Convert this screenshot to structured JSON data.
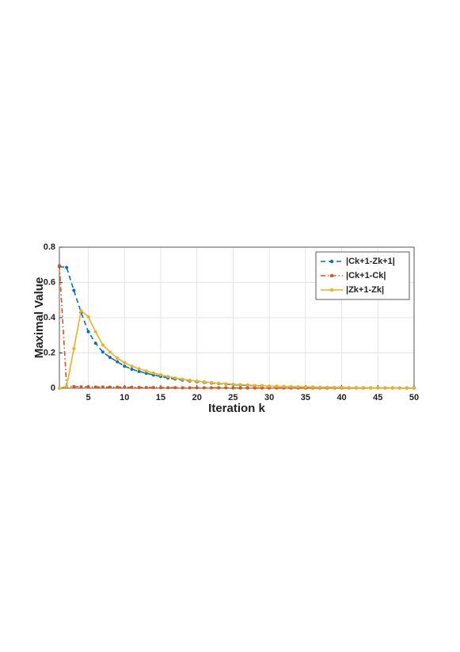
{
  "chart_data": {
    "type": "line",
    "x_label": "Iteration k",
    "y_label": "Maximal Value",
    "x": [
      1,
      2,
      3,
      4,
      5,
      6,
      7,
      8,
      9,
      10,
      11,
      12,
      13,
      14,
      15,
      16,
      17,
      18,
      19,
      20,
      21,
      22,
      23,
      24,
      25,
      26,
      27,
      28,
      29,
      30,
      31,
      32,
      33,
      34,
      35,
      36,
      37,
      38,
      39,
      40,
      41,
      42,
      43,
      44,
      45,
      46,
      47,
      48,
      49,
      50
    ],
    "xlim": [
      1,
      50
    ],
    "xticks": [
      5,
      10,
      15,
      20,
      25,
      30,
      35,
      40,
      45,
      50
    ],
    "ylim": [
      0,
      0.8
    ],
    "yticks": [
      0,
      0.2,
      0.4,
      0.6,
      0.8
    ],
    "grid": true,
    "legend": "northeast",
    "series": [
      {
        "name": "|Ck+1-Zk+1|",
        "color": "#0072BD",
        "line_style": "dashed",
        "values": [
          0.69,
          0.685,
          0.555,
          0.43,
          0.32,
          0.255,
          0.205,
          0.175,
          0.15,
          0.125,
          0.108,
          0.095,
          0.085,
          0.075,
          0.067,
          0.058,
          0.052,
          0.046,
          0.041,
          0.037,
          0.033,
          0.029,
          0.026,
          0.023,
          0.02,
          0.018,
          0.016,
          0.014,
          0.013,
          0.011,
          0.01,
          0.009,
          0.008,
          0.007,
          0.006,
          0.006,
          0.005,
          0.004,
          0.004,
          0.004,
          0.003,
          0.003,
          0.003,
          0.002,
          0.002,
          0.002,
          0.002,
          0.001,
          0.001,
          0.001
        ]
      },
      {
        "name": "|Ck+1-Ck|",
        "color": "#D95319",
        "line_style": "dashdot",
        "values": [
          0.695,
          0.01,
          0.009,
          0.008,
          0.008,
          0.007,
          0.007,
          0.006,
          0.006,
          0.005,
          0.005,
          0.004,
          0.004,
          0.004,
          0.003,
          0.003,
          0.003,
          0.002,
          0.002,
          0.002,
          0.002,
          0.002,
          0.002,
          0.002,
          0.001,
          0.001,
          0.001,
          0.001,
          0.001,
          0.001,
          0.001,
          0.001,
          0.001,
          0.001,
          0.001,
          0.001,
          0.001,
          0.001,
          0.001,
          0.001,
          0.001,
          0.001,
          0.001,
          0.001,
          0.001,
          0.001,
          0.001,
          0.001,
          0.001,
          0.001
        ]
      },
      {
        "name": "|Zk+1-Zk|",
        "color": "#EDB120",
        "line_style": "solid",
        "values": [
          0,
          0.01,
          0.225,
          0.44,
          0.405,
          0.32,
          0.245,
          0.205,
          0.17,
          0.145,
          0.125,
          0.11,
          0.097,
          0.086,
          0.076,
          0.066,
          0.058,
          0.051,
          0.045,
          0.04,
          0.036,
          0.032,
          0.028,
          0.025,
          0.022,
          0.02,
          0.018,
          0.016,
          0.014,
          0.012,
          0.011,
          0.01,
          0.009,
          0.008,
          0.007,
          0.006,
          0.005,
          0.005,
          0.004,
          0.004,
          0.003,
          0.003,
          0.003,
          0.002,
          0.002,
          0.002,
          0.002,
          0.001,
          0.001,
          0.001
        ]
      }
    ]
  }
}
